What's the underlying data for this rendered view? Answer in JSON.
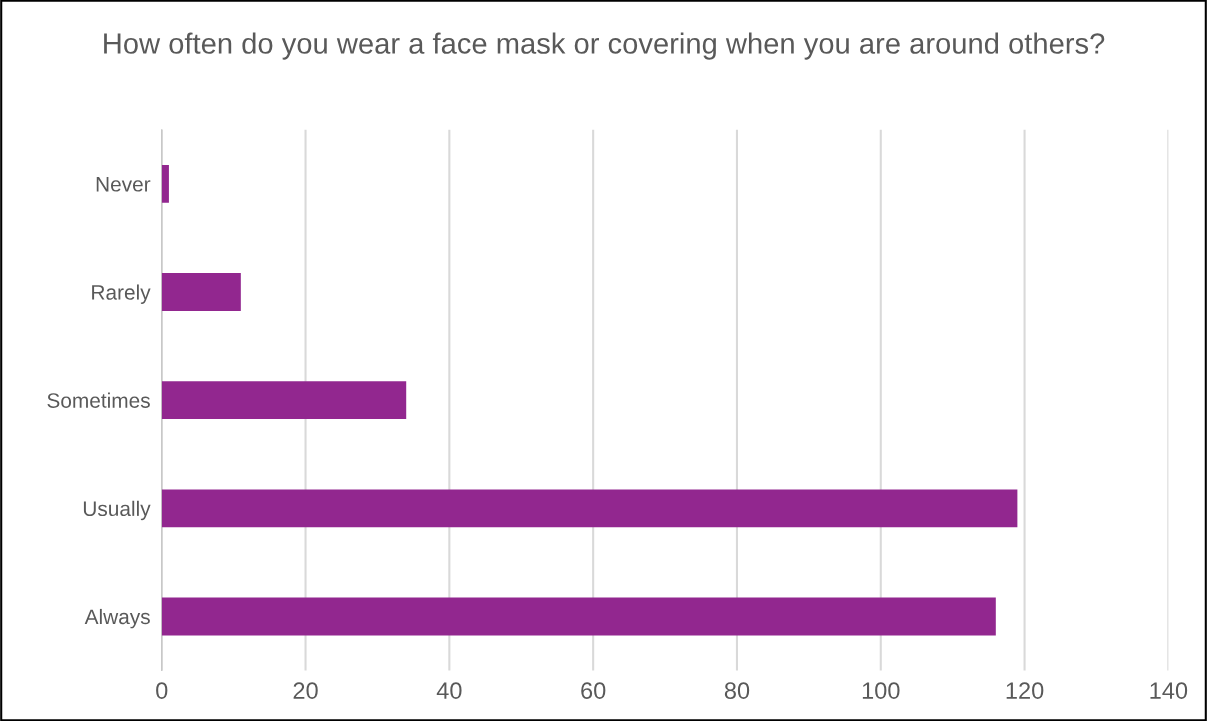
{
  "chart_data": {
    "type": "bar",
    "orientation": "horizontal",
    "title": "How often do you wear a face mask or covering when you are around others?",
    "categories": [
      "Never",
      "Rarely",
      "Sometimes",
      "Usually",
      "Always"
    ],
    "values": [
      1,
      11,
      34,
      119,
      116
    ],
    "color": "#92278f",
    "xlim": [
      0,
      140
    ],
    "xticks": [
      0,
      20,
      40,
      60,
      80,
      100,
      120,
      140
    ],
    "grid": "x"
  }
}
